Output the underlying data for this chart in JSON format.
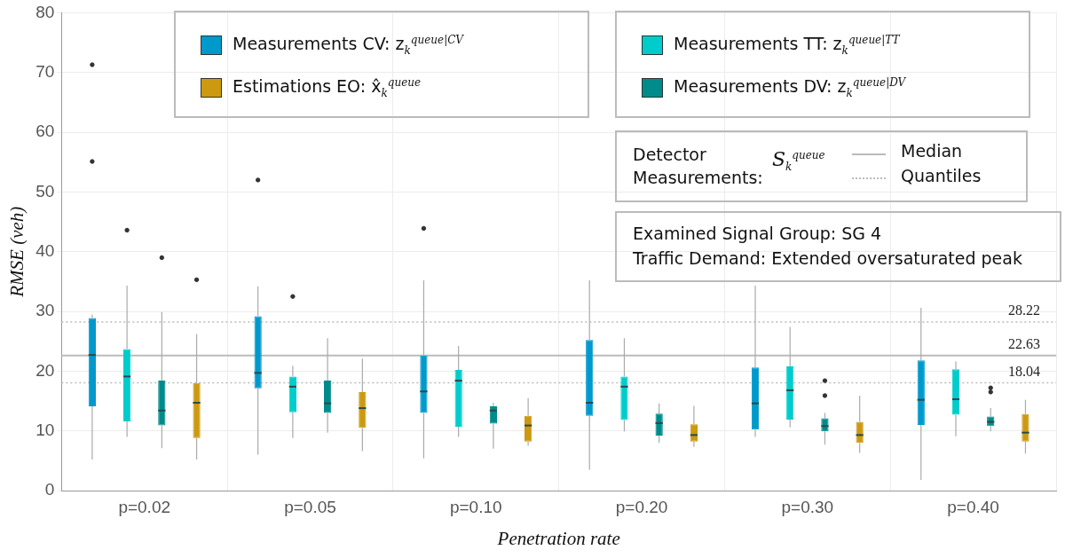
{
  "chart_data": {
    "type": "box",
    "xlabel": "Penetration rate",
    "ylabel": "RMSE (veh)",
    "categories": [
      "p=0.02",
      "p=0.05",
      "p=0.10",
      "p=0.20",
      "p=0.30",
      "p=0.40"
    ],
    "ylim": [
      0,
      80
    ],
    "yticks": [
      0,
      10,
      20,
      30,
      40,
      50,
      60,
      70,
      80
    ],
    "grid": true,
    "legend": "top",
    "series": [
      {
        "name": "Measurements CV: z$_{k}$$^{queue|CV}$",
        "color": "#0099cc",
        "boxes": [
          {
            "low": 5.2,
            "q1": 14.1,
            "median": 22.7,
            "q3": 28.9,
            "high": 29.5,
            "outliers": [
              71.3,
              55.1
            ]
          },
          {
            "low": 6.0,
            "q1": 17.1,
            "median": 19.7,
            "q3": 29.2,
            "high": 34.2,
            "outliers": [
              52.0
            ]
          },
          {
            "low": 5.4,
            "q1": 13.0,
            "median": 16.6,
            "q3": 22.6,
            "high": 35.2,
            "outliers": [
              43.9
            ]
          },
          {
            "low": 3.5,
            "q1": 12.5,
            "median": 14.7,
            "q3": 25.2,
            "high": 35.2
          },
          {
            "low": 9.0,
            "q1": 10.2,
            "median": 14.6,
            "q3": 20.6,
            "high": 34.3
          },
          {
            "low": 1.8,
            "q1": 11.0,
            "median": 15.2,
            "q3": 21.8,
            "high": 30.6
          }
        ]
      },
      {
        "name": "Measurements TT: z$_{k}$$^{queue|TT}$",
        "color": "#00cccc",
        "boxes": [
          {
            "low": 9.0,
            "q1": 11.6,
            "median": 19.1,
            "q3": 23.7,
            "high": 34.3,
            "outliers": [
              43.6
            ]
          },
          {
            "low": 8.8,
            "q1": 13.1,
            "median": 17.4,
            "q3": 19.1,
            "high": 20.9,
            "outliers": [
              32.5
            ]
          },
          {
            "low": 9.0,
            "q1": 10.7,
            "median": 18.4,
            "q3": 20.2,
            "high": 24.2
          },
          {
            "low": 9.9,
            "q1": 11.8,
            "median": 17.4,
            "q3": 19.1,
            "high": 25.5
          },
          {
            "low": 10.6,
            "q1": 11.9,
            "median": 16.8,
            "q3": 20.8,
            "high": 27.4
          },
          {
            "low": 9.1,
            "q1": 12.7,
            "median": 15.3,
            "q3": 20.3,
            "high": 21.6
          }
        ]
      },
      {
        "name": "Measurements DV: z$_{k}$$^{queue|DV}$",
        "color": "#008b8b",
        "boxes": [
          {
            "low": 7.1,
            "q1": 10.9,
            "median": 13.4,
            "q3": 18.4,
            "high": 29.9,
            "outliers": [
              39.0
            ]
          },
          {
            "low": 9.7,
            "q1": 13.0,
            "median": 14.6,
            "q3": 18.4,
            "high": 25.5
          },
          {
            "low": 7.0,
            "q1": 11.2,
            "median": 13.4,
            "q3": 14.1,
            "high": 14.7
          },
          {
            "low": 8.0,
            "q1": 9.2,
            "median": 11.3,
            "q3": 12.9,
            "high": 14.6
          },
          {
            "low": 7.7,
            "q1": 9.9,
            "median": 10.8,
            "q3": 12.1,
            "high": 13.0,
            "outliers": [
              15.9,
              18.4
            ]
          },
          {
            "low": 9.9,
            "q1": 10.8,
            "median": 11.5,
            "q3": 12.4,
            "high": 13.8,
            "outliers": [
              16.5,
              17.2
            ]
          }
        ]
      },
      {
        "name": "Estimations EO: x̂$_{k}$$^{queue}$",
        "color": "#cc9911",
        "boxes": [
          {
            "low": 5.2,
            "q1": 8.8,
            "median": 14.7,
            "q3": 18.0,
            "high": 26.2,
            "outliers": [
              35.3
            ]
          },
          {
            "low": 6.6,
            "q1": 10.5,
            "median": 13.8,
            "q3": 16.5,
            "high": 22.1
          },
          {
            "low": 7.5,
            "q1": 8.2,
            "median": 10.9,
            "q3": 12.5,
            "high": 15.5
          },
          {
            "low": 7.3,
            "q1": 8.2,
            "median": 9.3,
            "q3": 11.1,
            "high": 14.2
          },
          {
            "low": 6.3,
            "q1": 8.0,
            "median": 9.3,
            "q3": 11.5,
            "high": 15.9
          },
          {
            "low": 6.2,
            "q1": 8.2,
            "median": 9.7,
            "q3": 12.8,
            "high": 15.2
          }
        ]
      }
    ],
    "ref_lines": [
      {
        "axis": "y",
        "value": 28.22,
        "label": "28.22",
        "color": "#bbbbbb",
        "line_style": "dotted"
      },
      {
        "axis": "y",
        "value": 22.63,
        "label": "22.63",
        "color": "#bbbbbb",
        "line_style": "solid"
      },
      {
        "axis": "y",
        "value": 18.04,
        "label": "18.04",
        "color": "#bbbbbb",
        "line_style": "dotted"
      }
    ],
    "annotations": [
      "Detector Measurements:",
      "S$_{k}$$^{queue}$",
      "Median",
      "Quantiles",
      "Examined Signal Group: SG 4",
      "Traffic Demand: Extended oversaturated peak"
    ]
  }
}
